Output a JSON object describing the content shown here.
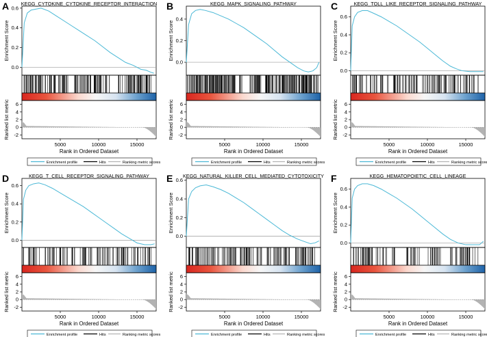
{
  "chart_data": [
    {
      "type": "line",
      "panel_letter": "A",
      "title": "KEGG_CYTOKINE_CYTOKINE_RECEPTOR_INTERACTION",
      "xlabel": "Rank in Ordered Dataset",
      "ylabel": "Enrichment Score",
      "ylabel_metric": "Ranked list metric",
      "xlim": [
        0,
        17500
      ],
      "ylim": [
        -0.08,
        0.62
      ],
      "x_ticks": [
        5000,
        10000,
        15000
      ],
      "y_ticks": [
        0.0,
        0.2,
        0.4,
        0.6
      ],
      "metric_ylim": [
        -3,
        7
      ],
      "metric_ticks": [
        6,
        4,
        2,
        0,
        -2
      ],
      "es_curve": {
        "x": [
          0,
          300,
          700,
          1200,
          1800,
          2500,
          3500,
          4500,
          5500,
          6500,
          7500,
          8500,
          9500,
          10500,
          11500,
          12500,
          13500,
          14500,
          15500,
          16200,
          16800,
          17200
        ],
        "y": [
          0.0,
          0.45,
          0.55,
          0.58,
          0.59,
          0.6,
          0.57,
          0.52,
          0.47,
          0.42,
          0.37,
          0.32,
          0.27,
          0.21,
          0.15,
          0.1,
          0.05,
          0.02,
          -0.02,
          -0.03,
          -0.05,
          -0.06
        ]
      },
      "hits_ranges": [
        [
          100,
          6000
        ],
        [
          6800,
          9000
        ],
        [
          9400,
          11500
        ],
        [
          12500,
          16900
        ]
      ],
      "hits_count": 170,
      "metric_ranked_max": 1.5,
      "metric_ranked_min": -2.5
    },
    {
      "type": "line",
      "panel_letter": "B",
      "title": "KEGG_MAPK_SIGNALING_PATHWAY",
      "xlabel": "Rank in Ordered Dataset",
      "ylabel": "Enrichment Score",
      "ylabel_metric": "Ranked list metric",
      "xlim": [
        0,
        17500
      ],
      "ylim": [
        -0.12,
        0.52
      ],
      "x_ticks": [
        5000,
        10000,
        15000
      ],
      "y_ticks": [
        0.0,
        0.2,
        0.4
      ],
      "metric_ylim": [
        -3,
        7
      ],
      "metric_ticks": [
        6,
        4,
        2,
        0,
        -2
      ],
      "es_curve": {
        "x": [
          0,
          300,
          700,
          1200,
          1800,
          2500,
          3500,
          4500,
          5500,
          6500,
          7500,
          8500,
          9500,
          10500,
          11500,
          12500,
          13500,
          14500,
          15300,
          15900,
          16500,
          17000,
          17300
        ],
        "y": [
          0.0,
          0.35,
          0.45,
          0.48,
          0.49,
          0.48,
          0.46,
          0.43,
          0.4,
          0.36,
          0.32,
          0.27,
          0.22,
          0.17,
          0.11,
          0.05,
          0.0,
          -0.05,
          -0.08,
          -0.09,
          -0.08,
          -0.05,
          0.0
        ]
      },
      "hits_ranges": [
        [
          100,
          7500
        ],
        [
          8300,
          9800
        ],
        [
          10000,
          17300
        ]
      ],
      "hits_count": 260,
      "metric_ranked_max": 1.5,
      "metric_ranked_min": -2.5
    },
    {
      "type": "line",
      "panel_letter": "C",
      "title": "KEGG_TOLL_LIKE_RECEPTOR_SIGNALING_PATHWAY",
      "xlabel": "Rank in Ordered Dataset",
      "ylabel": "Enrichment Score",
      "ylabel_metric": "Ranked list metric",
      "xlim": [
        0,
        17500
      ],
      "ylim": [
        -0.05,
        0.72
      ],
      "x_ticks": [
        5000,
        10000,
        15000
      ],
      "y_ticks": [
        0.0,
        0.2,
        0.4,
        0.6
      ],
      "metric_ylim": [
        -3,
        7
      ],
      "metric_ticks": [
        6,
        4,
        2,
        0,
        -2
      ],
      "es_curve": {
        "x": [
          0,
          200,
          500,
          900,
          1500,
          2200,
          3000,
          4000,
          5000,
          6000,
          7000,
          8000,
          9000,
          10000,
          11000,
          12000,
          13000,
          13800,
          14500,
          15500,
          16500,
          17300
        ],
        "y": [
          0.0,
          0.5,
          0.6,
          0.65,
          0.67,
          0.67,
          0.64,
          0.6,
          0.55,
          0.5,
          0.44,
          0.38,
          0.32,
          0.25,
          0.18,
          0.11,
          0.05,
          0.02,
          0.0,
          -0.01,
          -0.01,
          -0.01
        ]
      },
      "hits_ranges": [
        [
          100,
          3500
        ],
        [
          3800,
          4500
        ],
        [
          4700,
          9000
        ],
        [
          9300,
          17000
        ]
      ],
      "hits_count": 120,
      "metric_ranked_max": 1.5,
      "metric_ranked_min": -2.5
    },
    {
      "type": "line",
      "panel_letter": "D",
      "title": "KEGG_T_CELL_RECEPTOR_SIGNALING_PATHWAY",
      "xlabel": "Rank in Ordered Dataset",
      "ylabel": "Enrichment Score",
      "ylabel_metric": "Ranked list metric",
      "xlim": [
        0,
        17500
      ],
      "ylim": [
        -0.08,
        0.68
      ],
      "x_ticks": [
        5000,
        10000,
        15000
      ],
      "y_ticks": [
        0.0,
        0.2,
        0.4,
        0.6
      ],
      "metric_ylim": [
        -3,
        7
      ],
      "metric_ticks": [
        6,
        4,
        2,
        0,
        -2
      ],
      "es_curve": {
        "x": [
          0,
          200,
          500,
          900,
          1500,
          2200,
          3000,
          4000,
          5000,
          6000,
          7000,
          8000,
          9000,
          10000,
          11000,
          12000,
          13000,
          14000,
          15000,
          16000,
          16800,
          17300
        ],
        "y": [
          0.0,
          0.45,
          0.55,
          0.6,
          0.62,
          0.63,
          0.61,
          0.57,
          0.52,
          0.47,
          0.42,
          0.37,
          0.31,
          0.25,
          0.19,
          0.13,
          0.07,
          0.02,
          -0.03,
          -0.05,
          -0.05,
          -0.04
        ]
      },
      "hits_ranges": [
        [
          100,
          2500
        ],
        [
          3000,
          6000
        ],
        [
          6500,
          9200
        ],
        [
          9800,
          12000
        ],
        [
          12300,
          17000
        ]
      ],
      "hits_count": 110,
      "metric_ranked_max": 1.5,
      "metric_ranked_min": -2.5
    },
    {
      "type": "line",
      "panel_letter": "E",
      "title": "KEGG_NATURAL_KILLER_CELL_MEDIATED_CYTOTOXICITY",
      "xlabel": "Rank in Ordered Dataset",
      "ylabel": "Enrichment Score",
      "ylabel_metric": "Ranked list metric",
      "xlim": [
        0,
        17500
      ],
      "ylim": [
        -0.12,
        0.62
      ],
      "x_ticks": [
        5000,
        10000,
        15000
      ],
      "y_ticks": [
        0.0,
        0.2,
        0.4,
        0.6
      ],
      "metric_ylim": [
        -3,
        7
      ],
      "metric_ticks": [
        6,
        4,
        2,
        0,
        -2
      ],
      "es_curve": {
        "x": [
          0,
          300,
          700,
          1200,
          1800,
          2600,
          3500,
          4500,
          5500,
          6500,
          7500,
          8500,
          9500,
          10500,
          11500,
          12500,
          13500,
          14500,
          15500,
          16200,
          16800,
          17300
        ],
        "y": [
          0.0,
          0.4,
          0.48,
          0.52,
          0.54,
          0.55,
          0.53,
          0.5,
          0.46,
          0.41,
          0.36,
          0.3,
          0.24,
          0.18,
          0.12,
          0.06,
          0.01,
          -0.03,
          -0.06,
          -0.08,
          -0.07,
          -0.05
        ]
      },
      "hits_ranges": [
        [
          100,
          6500
        ],
        [
          7000,
          10000
        ],
        [
          10500,
          13500
        ],
        [
          13900,
          17000
        ]
      ],
      "hits_count": 140,
      "metric_ranked_max": 1.5,
      "metric_ranked_min": -2.5
    },
    {
      "type": "line",
      "panel_letter": "F",
      "title": "KEGG_HEMATOPOIETIC_CELL_LINEAGE",
      "xlabel": "Rank in Ordered Dataset",
      "ylabel": "Enrichment Score",
      "ylabel_metric": "Ranked list metric",
      "xlim": [
        0,
        17500
      ],
      "ylim": [
        -0.05,
        0.72
      ],
      "x_ticks": [
        5000,
        10000,
        15000
      ],
      "y_ticks": [
        0.0,
        0.2,
        0.4,
        0.6
      ],
      "metric_ylim": [
        -3,
        7
      ],
      "metric_ticks": [
        6,
        4,
        2,
        0,
        -2
      ],
      "es_curve": {
        "x": [
          0,
          200,
          500,
          900,
          1500,
          2200,
          3000,
          4000,
          5000,
          6000,
          7000,
          8000,
          9000,
          10000,
          11000,
          12000,
          13000,
          14000,
          15000,
          16000,
          16800,
          17300
        ],
        "y": [
          0.0,
          0.5,
          0.6,
          0.64,
          0.66,
          0.66,
          0.64,
          0.6,
          0.55,
          0.5,
          0.44,
          0.38,
          0.31,
          0.24,
          0.17,
          0.1,
          0.04,
          0.0,
          -0.02,
          -0.02,
          -0.02,
          0.02
        ]
      },
      "hits_ranges": [
        [
          100,
          4800
        ],
        [
          5400,
          6000
        ],
        [
          7000,
          9000
        ],
        [
          10000,
          12000
        ],
        [
          13000,
          16800
        ]
      ],
      "hits_count": 100,
      "metric_ranked_max": 1.5,
      "metric_ranked_min": -2.5
    }
  ],
  "legend": {
    "enrichment_profile": "Enrichment profile",
    "hits": "Hits",
    "ranking_metric_scores": "Ranking metric scores"
  },
  "colors": {
    "es_line": "#4ab8d6",
    "hits": "#000000",
    "metric_fill": "#b3b3b3",
    "zero_line": "#9a9a9a",
    "gradient_red": "#d8261f",
    "gradient_mid": "#f7f7f7",
    "gradient_blue": "#1d62a8"
  }
}
